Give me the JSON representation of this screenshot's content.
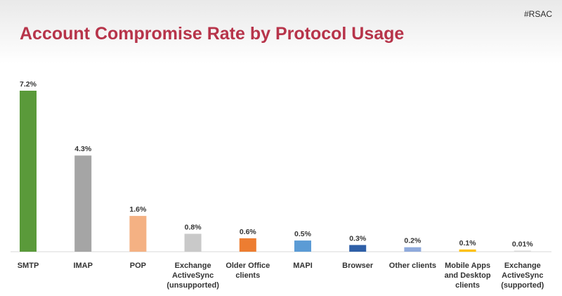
{
  "slide": {
    "hashtag": "#RSAC"
  },
  "chart_data": {
    "type": "bar",
    "title": "Account Compromise Rate by Protocol Usage",
    "xlabel": "",
    "ylabel": "",
    "ylim": [
      0,
      7.2
    ],
    "grid": false,
    "categories": [
      "SMTP",
      "IMAP",
      "POP",
      "Exchange\nActiveSync\n(unsupported)",
      "Older Office\nclients",
      "MAPI",
      "Browser",
      "Other clients",
      "Mobile Apps\nand Desktop\nclients",
      "Exchange\nActiveSync\n(supported)"
    ],
    "values": [
      7.2,
      4.3,
      1.6,
      0.8,
      0.6,
      0.5,
      0.3,
      0.2,
      0.1,
      0.01
    ],
    "value_labels": [
      "7.2%",
      "4.3%",
      "1.6%",
      "0.8%",
      "0.6%",
      "0.5%",
      "0.3%",
      "0.2%",
      "0.1%",
      "0.01%"
    ],
    "colors": [
      "#5a9a3a",
      "#a5a5a5",
      "#f4b183",
      "#c9c9c9",
      "#ed7d31",
      "#5b9bd5",
      "#2e5fa7",
      "#8faadc",
      "#ffc000",
      "#d9d9d9"
    ]
  }
}
